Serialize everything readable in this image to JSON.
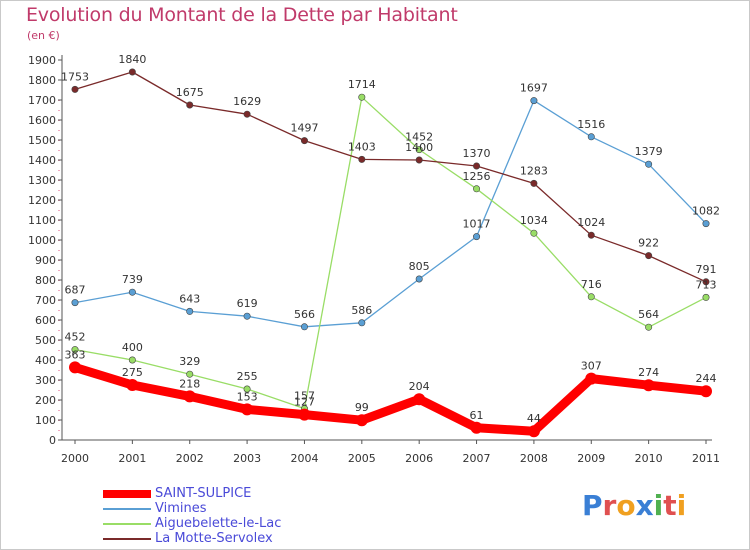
{
  "title": "Evolution du Montant de la Dette par Habitant",
  "subtitle": "(en €)",
  "logo": {
    "text": "Proxiti",
    "colors": [
      "#3a7fd5",
      "#e05050",
      "#f0a020",
      "#3a7fd5",
      "#50b050",
      "#e05050",
      "#f0a020"
    ]
  },
  "chart_data": {
    "type": "line",
    "title": "Evolution du Montant de la Dette par Habitant",
    "ylabel": "(en €)",
    "x": [
      "2000",
      "2001",
      "2002",
      "2003",
      "2004",
      "2005",
      "2006",
      "2007",
      "2008",
      "2009",
      "2010",
      "2011"
    ],
    "ylim": [
      0,
      1900
    ],
    "yticks": [
      0,
      100,
      200,
      300,
      400,
      500,
      600,
      700,
      800,
      900,
      1000,
      1100,
      1200,
      1300,
      1400,
      1500,
      1600,
      1700,
      1800,
      1900
    ],
    "grid": false,
    "legend": "bottom-left",
    "series": [
      {
        "name": "SAINT-SULPICE",
        "color": "#ff0000",
        "values": [
          363,
          275,
          218,
          153,
          127,
          99,
          204,
          61,
          44,
          307,
          274,
          244
        ]
      },
      {
        "name": "Vimines",
        "color": "#5a9fd4",
        "values": [
          687,
          739,
          643,
          619,
          566,
          586,
          805,
          1017,
          1697,
          1516,
          1379,
          1082
        ]
      },
      {
        "name": "Aiguebelette-le-Lac",
        "color": "#99dd66",
        "values": [
          452,
          400,
          329,
          255,
          157,
          1714,
          1452,
          1256,
          1034,
          716,
          564,
          713
        ]
      },
      {
        "name": "La Motte-Servolex",
        "color": "#7a2a2a",
        "values": [
          1753,
          1840,
          1675,
          1629,
          1497,
          1403,
          1400,
          1370,
          1283,
          1024,
          922,
          791
        ]
      }
    ]
  }
}
